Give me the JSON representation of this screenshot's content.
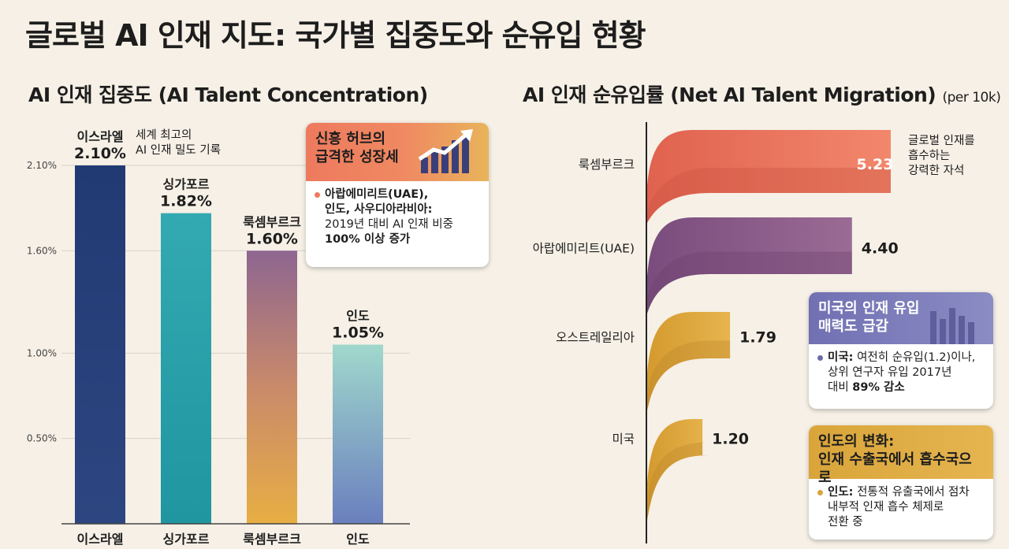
{
  "title": "글로벌 AI 인재 지도: 국가별 집중도와 순유입 현황",
  "left": {
    "title": "AI 인재 집중도 (AI Talent Concentration)",
    "bar_notes": [
      {
        "text": "이스라엘"
      },
      {
        "text": "세계 최고의"
      },
      {
        "text": "AI 인재 밀도 기록"
      }
    ]
  },
  "right": {
    "title": "AI 인재 순유입률 (Net AI Talent Migration)",
    "unit": "(per 10k)",
    "annotation": [
      "글로벌 인재를",
      "흡수하는",
      "강력한 자석"
    ]
  },
  "callouts": {
    "uae": {
      "head_lines": [
        "신흥 허브의",
        "급격한 성장세"
      ],
      "body_bold": "아랍에미리트(UAE),",
      "body_bold2": "인도, 사우디아라비아:",
      "body_line3": "2019년 대비 AI 인재 비중",
      "body_bold3": "100% 이상 증가"
    },
    "usa": {
      "head_lines": [
        "미국의 인재 유입",
        "매력도 급감"
      ],
      "body_bold": "미국:",
      "body_text": " 여전히 순유입(1.2)이나,",
      "body_line2": "상위 연구자 유입 2017년",
      "body_line3_pre": "대비 ",
      "body_bold2": "89% 감소"
    },
    "india": {
      "head_lines": [
        "인도의 변화:",
        "인재 수출국에서 흡수국으로"
      ],
      "body_bold": "인도:",
      "body_text": " 전통적 유출국에서 점차",
      "body_line2": "내부적 인재 흡수 체제로",
      "body_line3": "전환 중"
    }
  },
  "colors": {
    "israel": "#2b417a",
    "singapore": "#2ba6ae",
    "lux_top": "#8e6690",
    "lux_bottom": "#e6ad45",
    "india_top": "#99d3c8",
    "india_bottom": "#6a80bd",
    "mig_lux": "#ef7a62",
    "mig_uae": "#8a5b89",
    "mig_aus": "#e0aa3c",
    "mig_us": "#e0aa3c",
    "dot_uae": "#ee7a5e",
    "dot_usa": "#6d6aa8",
    "dot_india": "#d9a53a"
  },
  "chart_data": [
    {
      "type": "bar",
      "title": "AI 인재 집중도 (AI Talent Concentration)",
      "categories": [
        "이스라엘",
        "싱가포르",
        "룩셈부르크",
        "인도"
      ],
      "values": [
        2.1,
        1.82,
        1.6,
        1.05
      ],
      "value_labels": [
        "2.10%",
        "1.82%",
        "1.60%",
        "1.05%"
      ],
      "yticks": [
        0.5,
        1.0,
        1.6,
        2.1
      ],
      "ytick_labels": [
        "0.50%",
        "1.00%",
        "1.60%",
        "2.10%"
      ],
      "ylim": [
        0,
        2.1
      ]
    },
    {
      "type": "bar",
      "orientation": "horizontal",
      "title": "AI 인재 순유입률 (Net AI Talent Migration)",
      "categories": [
        "룩셈부르크",
        "아랍에미리트(UAE)",
        "오스트레일리아",
        "미국"
      ],
      "values": [
        5.23,
        4.4,
        1.79,
        1.2
      ],
      "value_labels": [
        "5.23",
        "4.40",
        "1.79",
        "1.20"
      ]
    }
  ]
}
